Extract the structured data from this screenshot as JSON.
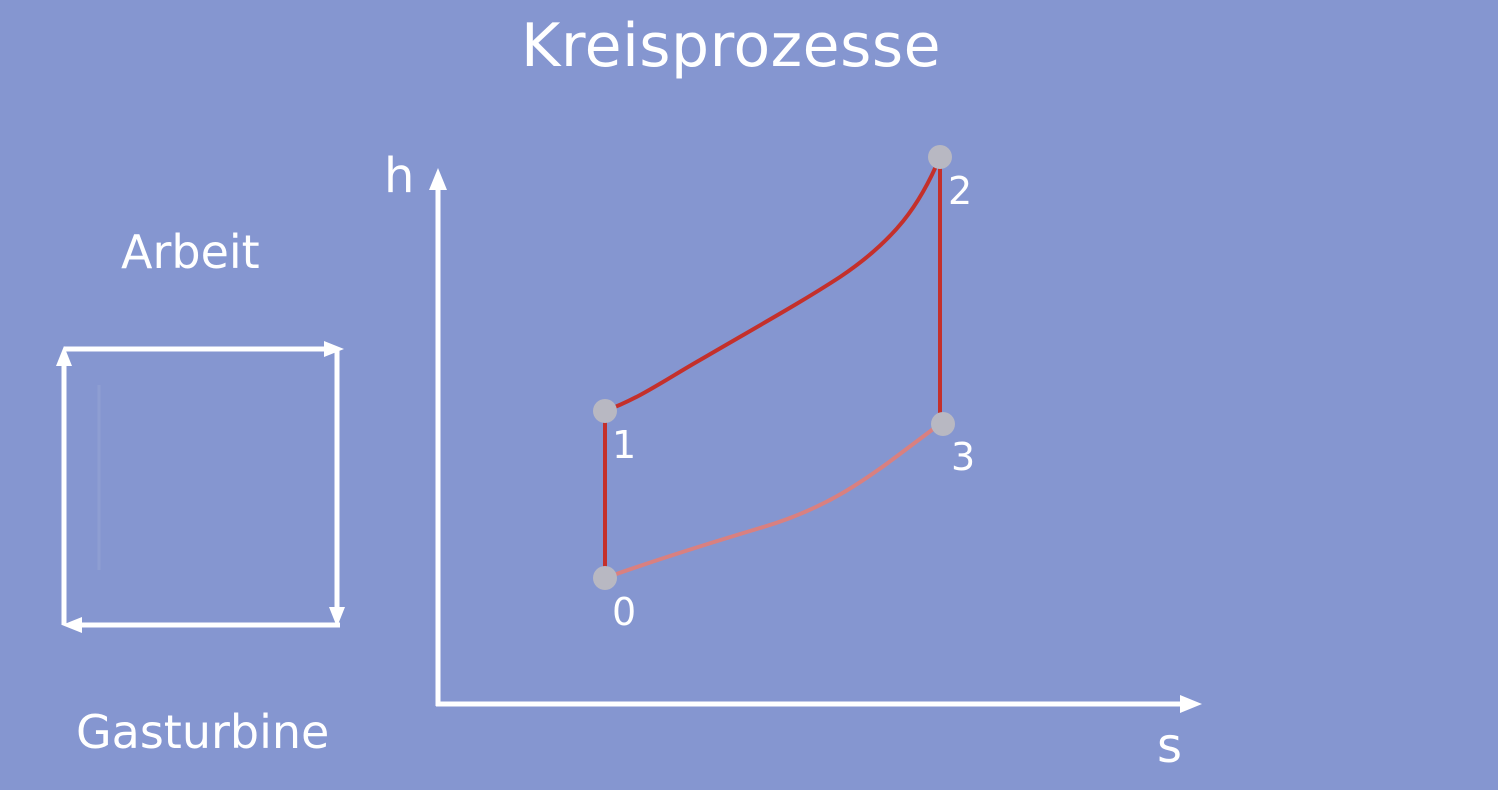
{
  "title": "Kreisprozesse",
  "left_panel": {
    "top_label": "Arbeit",
    "bottom_label": "Gasturbine",
    "icon": "work-cycle-arrows-icon"
  },
  "diagram": {
    "x_axis_label": "s",
    "y_axis_label": "h",
    "states": [
      {
        "id": "0",
        "label": "0"
      },
      {
        "id": "1",
        "label": "1"
      },
      {
        "id": "2",
        "label": "2"
      },
      {
        "id": "3",
        "label": "3"
      }
    ],
    "processes": [
      {
        "from": "0",
        "to": "1"
      },
      {
        "from": "1",
        "to": "2"
      },
      {
        "from": "2",
        "to": "3"
      },
      {
        "from": "3",
        "to": "0"
      }
    ]
  },
  "colors": {
    "background": "#8596d0",
    "foreground": "#ffffff",
    "process_line": "#c4302b",
    "heat_rejection_line": "#d98080",
    "state_point": "#b8b8c2"
  }
}
